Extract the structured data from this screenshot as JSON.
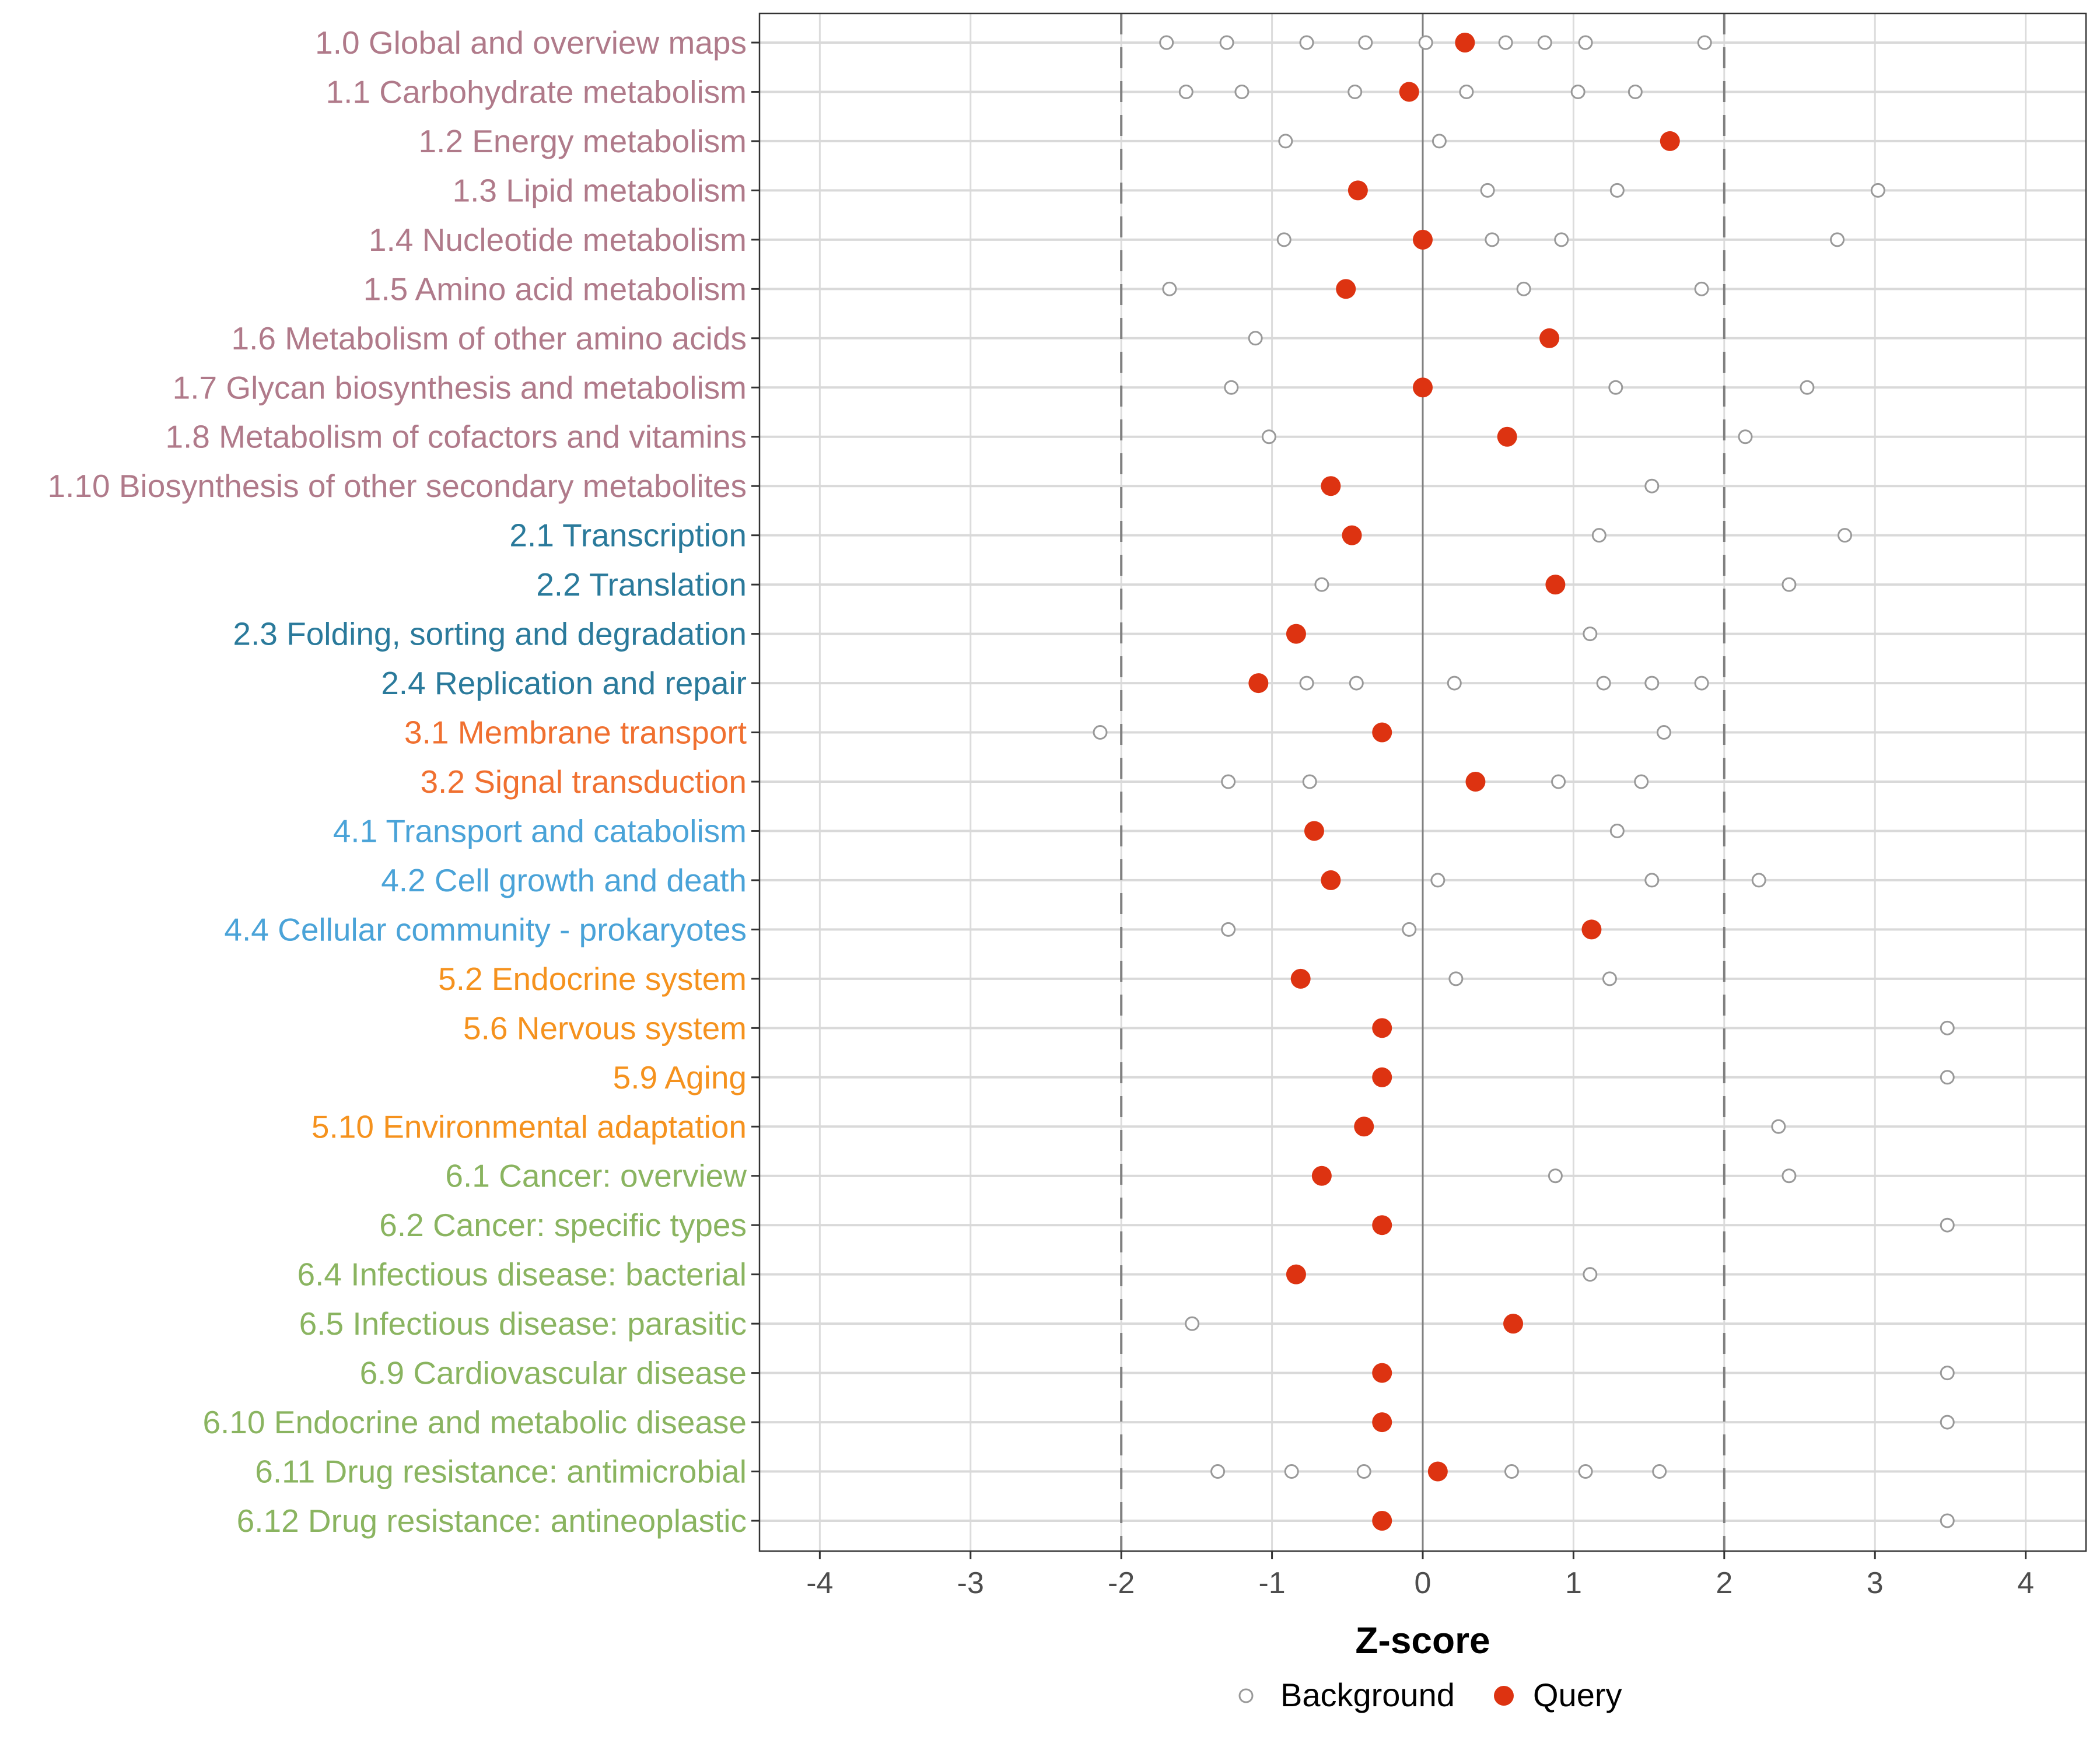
{
  "chart_data": {
    "type": "scatter",
    "orientation": "horizontal-dotplot",
    "title": "",
    "xlabel": "Z-score",
    "ylabel": "",
    "xlim": [
      -4.4,
      4.4
    ],
    "xticks": [
      -4,
      -3,
      -2,
      -1,
      0,
      1,
      2,
      3,
      4
    ],
    "xtick_labels": [
      "-4",
      "-3",
      "-2",
      "-1",
      "0",
      "1",
      "2",
      "3",
      "4"
    ],
    "reference_lines": [
      {
        "x": -2,
        "style": "dashed",
        "color": "#808080"
      },
      {
        "x": 0,
        "style": "solid",
        "color": "#808080"
      },
      {
        "x": 2,
        "style": "dashed",
        "color": "#808080"
      }
    ],
    "grid": true,
    "legend": {
      "position": "bottom",
      "entries": [
        {
          "name": "Background",
          "marker": "open-circle",
          "color": "#999999"
        },
        {
          "name": "Query",
          "marker": "filled-circle",
          "color": "#dd3311"
        }
      ]
    },
    "group_colors": {
      "1": "#b07a8a",
      "2": "#2a7a9b",
      "3": "#f07030",
      "4": "#4aa3d8",
      "5": "#f5921e",
      "6": "#8ab460"
    },
    "categories": [
      {
        "label": "1.0 Global and overview maps",
        "group": "1",
        "query": 0.28,
        "background": [
          -1.7,
          -1.3,
          -0.77,
          -0.38,
          0.02,
          0.55,
          0.81,
          1.08,
          1.87
        ]
      },
      {
        "label": "1.1 Carbohydrate metabolism",
        "group": "1",
        "query": -0.09,
        "background": [
          -1.57,
          -1.2,
          -0.45,
          0.29,
          1.03,
          1.41
        ]
      },
      {
        "label": "1.2 Energy metabolism",
        "group": "1",
        "query": 1.64,
        "background": [
          -0.91,
          0.11
        ]
      },
      {
        "label": "1.3 Lipid metabolism",
        "group": "1",
        "query": -0.43,
        "background": [
          0.43,
          1.29,
          3.02
        ]
      },
      {
        "label": "1.4 Nucleotide metabolism",
        "group": "1",
        "query": 0.0,
        "background": [
          -0.92,
          0.46,
          0.92,
          2.75
        ]
      },
      {
        "label": "1.5 Amino acid metabolism",
        "group": "1",
        "query": -0.51,
        "background": [
          -1.68,
          0.67,
          1.85
        ]
      },
      {
        "label": "1.6 Metabolism of other amino acids",
        "group": "1",
        "query": 0.84,
        "background": [
          -1.11
        ]
      },
      {
        "label": "1.7 Glycan biosynthesis and metabolism",
        "group": "1",
        "query": 0.0,
        "background": [
          -1.27,
          1.28,
          2.55
        ]
      },
      {
        "label": "1.8 Metabolism of cofactors and vitamins",
        "group": "1",
        "query": 0.56,
        "background": [
          -1.02,
          2.14
        ]
      },
      {
        "label": "1.10 Biosynthesis of other secondary metabolites",
        "group": "1",
        "query": -0.61,
        "background": [
          1.52
        ]
      },
      {
        "label": "2.1 Transcription",
        "group": "2",
        "query": -0.47,
        "background": [
          1.17,
          2.8
        ]
      },
      {
        "label": "2.2 Translation",
        "group": "2",
        "query": 0.88,
        "background": [
          -0.67,
          2.43
        ]
      },
      {
        "label": "2.3 Folding, sorting and degradation",
        "group": "2",
        "query": -0.84,
        "background": [
          1.11
        ]
      },
      {
        "label": "2.4 Replication and repair",
        "group": "2",
        "query": -1.09,
        "background": [
          -0.77,
          -0.44,
          0.21,
          1.2,
          1.52,
          1.85
        ]
      },
      {
        "label": "3.1 Membrane transport",
        "group": "3",
        "query": -0.27,
        "background": [
          -2.14,
          1.6
        ]
      },
      {
        "label": "3.2 Signal transduction",
        "group": "3",
        "query": 0.35,
        "background": [
          -1.29,
          -0.75,
          0.9,
          1.45
        ]
      },
      {
        "label": "4.1 Transport and catabolism",
        "group": "4",
        "query": -0.72,
        "background": [
          1.29
        ]
      },
      {
        "label": "4.2 Cell growth and death",
        "group": "4",
        "query": -0.61,
        "background": [
          0.1,
          1.52,
          2.23
        ]
      },
      {
        "label": "4.4 Cellular community - prokaryotes",
        "group": "4",
        "query": 1.12,
        "background": [
          -1.29,
          -0.09
        ]
      },
      {
        "label": "5.2 Endocrine system",
        "group": "5",
        "query": -0.81,
        "background": [
          0.22,
          1.24
        ]
      },
      {
        "label": "5.6 Nervous system",
        "group": "5",
        "query": -0.27,
        "background": [
          3.48
        ]
      },
      {
        "label": "5.9 Aging",
        "group": "5",
        "query": -0.27,
        "background": [
          3.48
        ]
      },
      {
        "label": "5.10 Environmental adaptation",
        "group": "5",
        "query": -0.39,
        "background": [
          2.36
        ]
      },
      {
        "label": "6.1 Cancer: overview",
        "group": "6",
        "query": -0.67,
        "background": [
          0.88,
          2.43
        ]
      },
      {
        "label": "6.2 Cancer: specific types",
        "group": "6",
        "query": -0.27,
        "background": [
          3.48
        ]
      },
      {
        "label": "6.4 Infectious disease: bacterial",
        "group": "6",
        "query": -0.84,
        "background": [
          1.11
        ]
      },
      {
        "label": "6.5 Infectious disease: parasitic",
        "group": "6",
        "query": 0.6,
        "background": [
          -1.53
        ]
      },
      {
        "label": "6.9 Cardiovascular disease",
        "group": "6",
        "query": -0.27,
        "background": [
          3.48
        ]
      },
      {
        "label": "6.10 Endocrine and metabolic disease",
        "group": "6",
        "query": -0.27,
        "background": [
          3.48
        ]
      },
      {
        "label": "6.11 Drug resistance: antimicrobial",
        "group": "6",
        "query": 0.1,
        "background": [
          -1.36,
          -0.87,
          -0.39,
          0.59,
          1.08,
          1.57
        ]
      },
      {
        "label": "6.12 Drug resistance: antineoplastic",
        "group": "6",
        "query": -0.27,
        "background": [
          3.48
        ]
      }
    ]
  }
}
